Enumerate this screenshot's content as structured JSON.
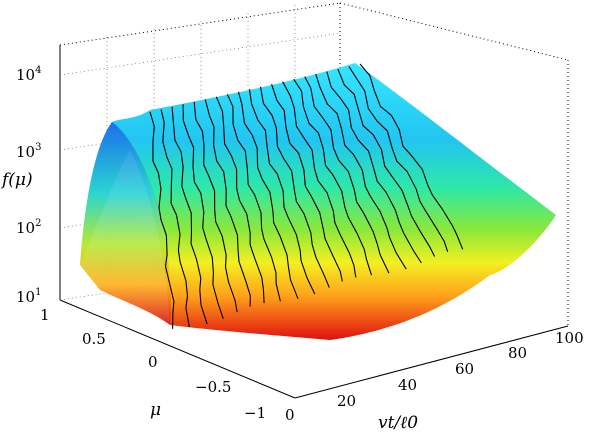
{
  "chart_data": {
    "type": "surface",
    "zlabel": "f(μ)",
    "ylabel": "μ",
    "xlabel": "vt/ℓ0",
    "z_scale": "log",
    "zlim": [
      10,
      10000
    ],
    "z_ticks": [
      {
        "base": "10",
        "exp": "1"
      },
      {
        "base": "10",
        "exp": "2"
      },
      {
        "base": "10",
        "exp": "3"
      },
      {
        "base": "10",
        "exp": "4"
      }
    ],
    "mu_ticks": [
      "1",
      "0.5",
      "0",
      "−0.5",
      "−1"
    ],
    "t_ticks": [
      "0",
      "20",
      "40",
      "60",
      "80",
      "100"
    ],
    "xlim": [
      0,
      100
    ],
    "ylim": [
      -1,
      1
    ],
    "grid": true,
    "colormap": "jet",
    "surface_samples": {
      "vt_over_l0": [
        0,
        1.5,
        5,
        10,
        20,
        30,
        40,
        50,
        60,
        70,
        80,
        90,
        100
      ],
      "f_at_mu_1": [
        40,
        300,
        1200,
        2400,
        2800,
        3100,
        3400,
        3700,
        4000,
        4300,
        4600,
        4900,
        5200
      ],
      "f_at_mu_0": [
        20,
        150,
        400,
        700,
        1300,
        1600,
        1800,
        2000,
        2100,
        2200,
        2300,
        2400,
        2500
      ],
      "f_at_mu_minus_1": [
        15,
        14,
        15,
        16,
        18,
        20,
        23,
        26,
        30,
        40,
        55,
        70,
        90
      ]
    }
  }
}
